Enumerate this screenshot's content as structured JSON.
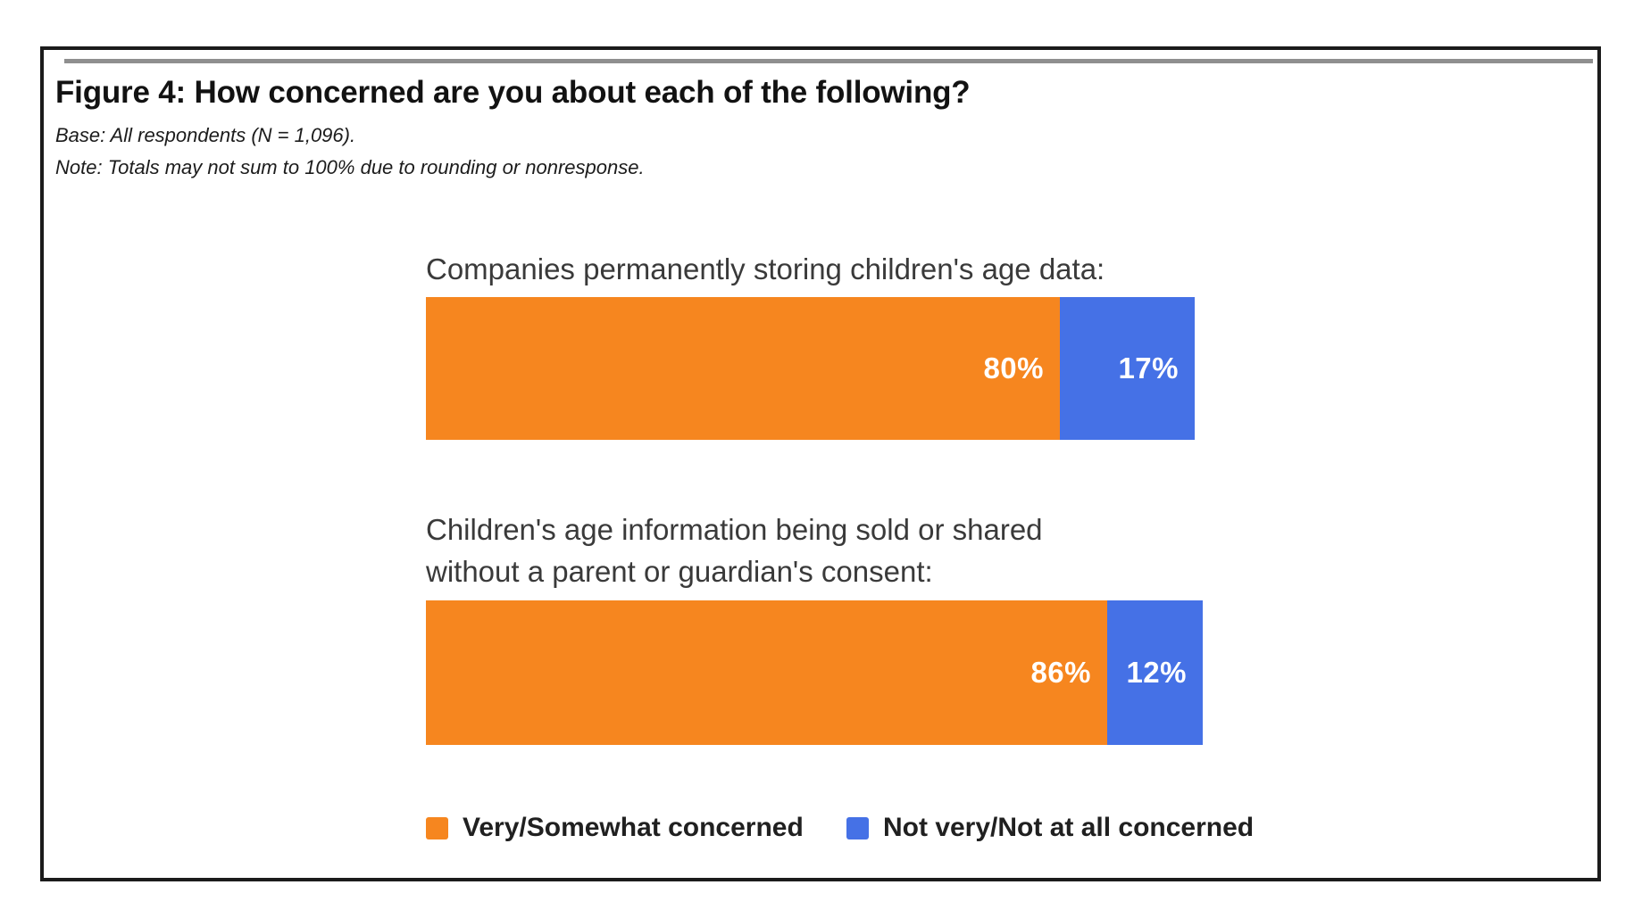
{
  "figure": {
    "title": "Figure 4: How concerned are you about each of the following?",
    "base_note": "Base: All respondents (N = 1,096).",
    "rounding_note": "Note: Totals may not sum to 100% due to rounding or nonresponse."
  },
  "colors": {
    "concerned_orange": "#F6861F",
    "not_concerned_blue": "#4571E6",
    "frame_border": "#1b1b1b",
    "top_rule_gray": "#8f8f8f",
    "bar_value_text": "#ffffff"
  },
  "chart_data": {
    "type": "bar",
    "orientation": "horizontal",
    "stacked": true,
    "grid": false,
    "xlim": [
      0,
      100
    ],
    "value_suffix": "%",
    "legend_position": "bottom",
    "data_label_position": "inside-end",
    "categories": [
      "Companies permanently storing children's age data:",
      "Children's age information being sold or shared\nwithout a parent or guardian's consent:"
    ],
    "series": [
      {
        "name": "Very/Somewhat concerned",
        "color": "#F6861F",
        "values": [
          80,
          86
        ]
      },
      {
        "name": "Not very/Not at all concerned",
        "color": "#4571E6",
        "values": [
          17,
          12
        ]
      }
    ]
  }
}
